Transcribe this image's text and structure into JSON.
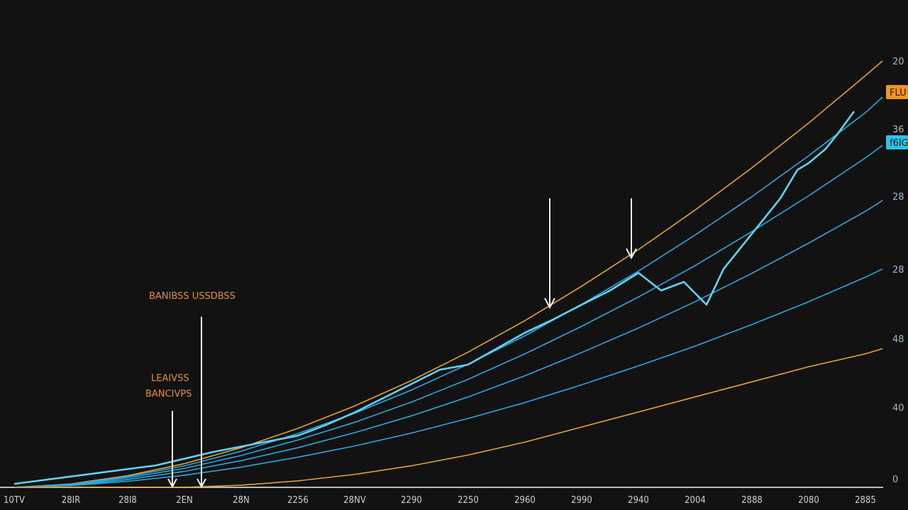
{
  "chart_data": {
    "type": "line",
    "title": "",
    "xlabel": "",
    "ylabel": "",
    "x_tick_labels": [
      "10TV",
      "28IR",
      "28I8",
      "2EN",
      "28N",
      "2256",
      "28NV",
      "2290",
      "2250",
      "2960",
      "2990",
      "2940",
      "2004",
      "2888",
      "2080",
      "2885"
    ],
    "y_tick_labels": [
      {
        "text": "20",
        "box": null
      },
      {
        "text": "FLU",
        "box": "#f0961e"
      },
      {
        "text": "36",
        "box": null
      },
      {
        "text": "f6IG",
        "box": "#29c4ea"
      },
      {
        "text": "28",
        "box": null
      },
      {
        "text": "28",
        "box": null
      },
      {
        "text": "48",
        "box": null
      },
      {
        "text": "40",
        "box": null
      },
      {
        "text": "0",
        "box": null
      }
    ],
    "xlim": [
      0,
      15.3
    ],
    "ylim": [
      0,
      100
    ],
    "grid": false,
    "annotations": [
      "BANIBSS USSDBSS",
      "LEAIVSS",
      "BANCIVPS"
    ],
    "x": [
      0,
      1,
      2,
      3,
      4,
      5,
      6,
      7,
      8,
      9,
      10,
      11,
      12,
      13,
      14,
      15,
      15.3
    ],
    "series": [
      {
        "color": "#e8a32a",
        "values": [
          0,
          0.8,
          2.7,
          5.5,
          9.2,
          13.7,
          18.9,
          24.8,
          31.4,
          38.7,
          46.7,
          55.2,
          64.4,
          74.2,
          84.6,
          95.6,
          99
        ]
      },
      {
        "color": "#2aa8e0",
        "values": [
          0,
          0.7,
          2.5,
          5.0,
          8.4,
          12.5,
          17.2,
          22.6,
          28.6,
          35.2,
          42.5,
          50.2,
          58.6,
          67.5,
          77,
          87,
          90.6
        ]
      },
      {
        "color": "#2aa8e0",
        "values": [
          0,
          0.6,
          2.2,
          4.4,
          7.4,
          11,
          15.1,
          19.8,
          25.1,
          31,
          37.4,
          44.2,
          51.5,
          59.4,
          67.7,
          76.5,
          79.4
        ]
      },
      {
        "color": "#2aa8e0",
        "values": [
          0,
          0.5,
          1.8,
          3.7,
          6.2,
          9.2,
          12.7,
          16.6,
          21,
          25.9,
          31.3,
          37,
          43.1,
          49.7,
          56.7,
          64.1,
          66.6
        ]
      },
      {
        "color": "#2aa8e0",
        "values": [
          0,
          0.4,
          1.4,
          2.8,
          4.7,
          7,
          9.6,
          12.6,
          16,
          19.7,
          23.8,
          28.2,
          32.8,
          37.8,
          43.1,
          48.8,
          50.7
        ]
      },
      {
        "color": "#e8a32a",
        "values": [
          0,
          0,
          0,
          0,
          0.5,
          1.5,
          3,
          5,
          7.5,
          10.5,
          14,
          17.5,
          21,
          24.5,
          28,
          31,
          32.2
        ]
      }
    ],
    "price_series": {
      "color": "#5fd3f0",
      "x": [
        0,
        2.5,
        3.5,
        5,
        5.5,
        6,
        7.5,
        8,
        9,
        9.5,
        10,
        10.5,
        11,
        11.4,
        11.8,
        12.2,
        12.5,
        13,
        13.5,
        13.8,
        14,
        14.3,
        14.5,
        14.8
      ],
      "values": [
        0.8,
        5.1,
        8.2,
        12,
        14.5,
        17.4,
        27.3,
        28.5,
        35.9,
        39,
        42.4,
        45.7,
        49.8,
        45.7,
        47.7,
        42.4,
        50.7,
        58.9,
        67.1,
        73.7,
        75.3,
        78.6,
        81.9,
        87.3
      ]
    }
  }
}
